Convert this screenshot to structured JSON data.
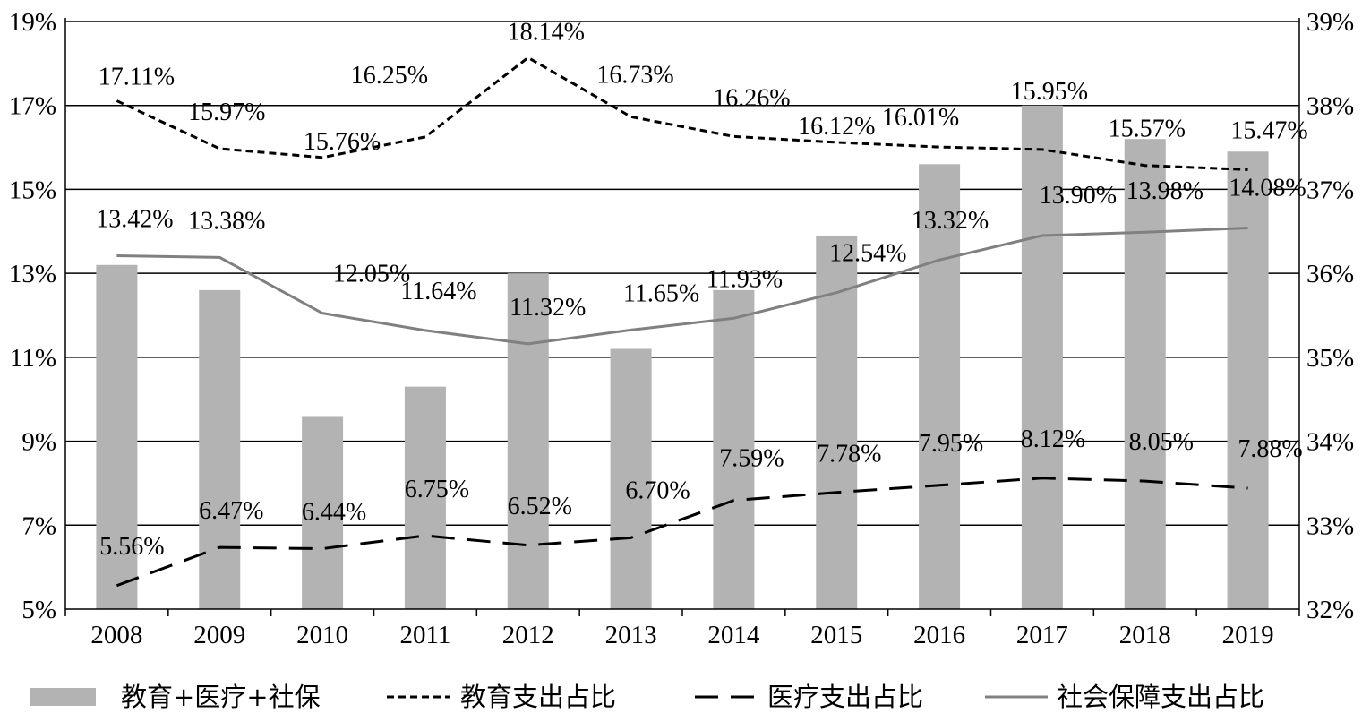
{
  "chart_data": {
    "type": "bar",
    "categories": [
      "2008",
      "2009",
      "2010",
      "2011",
      "2012",
      "2013",
      "2014",
      "2015",
      "2016",
      "2017",
      "2018",
      "2019"
    ],
    "y_left": {
      "range": [
        5,
        19
      ],
      "ticks": [
        5,
        7,
        9,
        11,
        13,
        15,
        17,
        19
      ],
      "tick_labels": [
        "5%",
        "7%",
        "9%",
        "11%",
        "13%",
        "15%",
        "17%",
        "19%"
      ]
    },
    "y_right": {
      "range": [
        32,
        39
      ],
      "ticks": [
        32,
        33,
        34,
        35,
        36,
        37,
        38,
        39
      ],
      "tick_labels": [
        "32%",
        "33%",
        "34%",
        "35%",
        "36%",
        "37%",
        "38%",
        "39%"
      ]
    },
    "grid": true,
    "legend_position": "bottom",
    "series": [
      {
        "name": "教育+医疗+社保",
        "type": "bar",
        "axis": "right",
        "color": "#b3b3b3",
        "values": [
          36.1,
          35.8,
          34.3,
          34.65,
          36.0,
          35.1,
          35.8,
          36.45,
          37.3,
          38.0,
          37.6,
          37.45
        ]
      },
      {
        "name": "教育支出占比",
        "type": "line",
        "style": "dotted-dash",
        "axis": "left",
        "color": "#000000",
        "values": [
          17.11,
          15.97,
          15.76,
          16.25,
          18.14,
          16.73,
          16.26,
          16.12,
          16.01,
          15.95,
          15.57,
          15.47
        ],
        "labels": [
          "17.11%",
          "15.97%",
          "15.76%",
          "16.25%",
          "18.14%",
          "16.73%",
          "16.26%",
          "16.12%",
          "16.01%",
          "15.95%",
          "15.57%",
          "15.47%"
        ]
      },
      {
        "name": "医疗支出占比",
        "type": "line",
        "style": "long-dash",
        "axis": "left",
        "color": "#000000",
        "values": [
          5.56,
          6.47,
          6.44,
          6.75,
          6.52,
          6.7,
          7.59,
          7.78,
          7.95,
          8.12,
          8.05,
          7.88
        ],
        "labels": [
          "5.56%",
          "6.47%",
          "6.44%",
          "6.75%",
          "6.52%",
          "6.70%",
          "7.59%",
          "7.78%",
          "7.95%",
          "8.12%",
          "8.05%",
          "7.88%"
        ]
      },
      {
        "name": "社会保障支出占比",
        "type": "line",
        "style": "solid",
        "axis": "left",
        "color": "#808080",
        "values": [
          13.42,
          13.38,
          12.05,
          11.64,
          11.32,
          11.65,
          11.93,
          12.54,
          13.32,
          13.9,
          13.98,
          14.08
        ],
        "labels": [
          "13.42%",
          "13.38%",
          "12.05%",
          "11.64%",
          "11.32%",
          "11.65%",
          "11.93%",
          "12.54%",
          "13.32%",
          "13.90%",
          "13.98%",
          "14.08%"
        ]
      }
    ]
  }
}
